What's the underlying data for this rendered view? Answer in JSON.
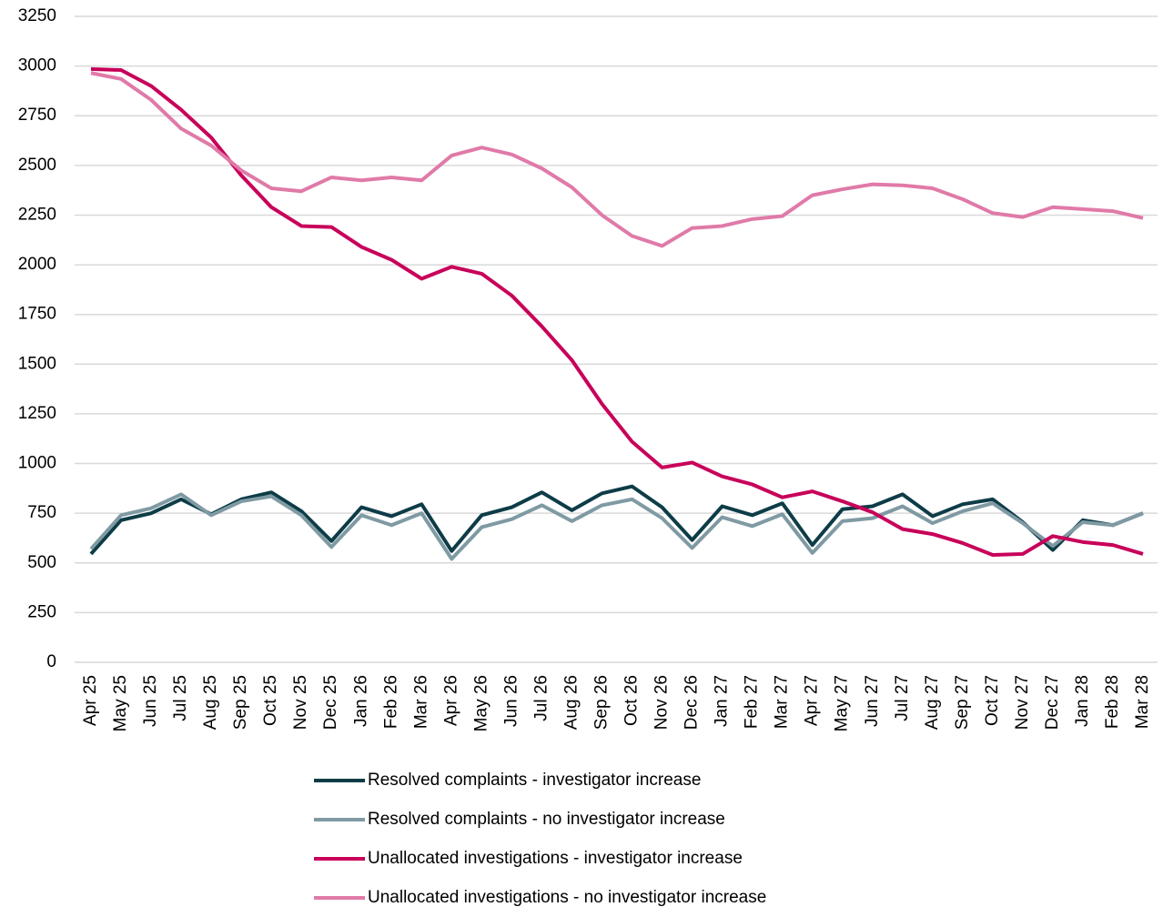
{
  "chart_data": {
    "type": "line",
    "categories": [
      "Apr 25",
      "May 25",
      "Jun 25",
      "Jul 25",
      "Aug 25",
      "Sep 25",
      "Oct 25",
      "Nov 25",
      "Dec 25",
      "Jan 26",
      "Feb 26",
      "Mar 26",
      "Apr 26",
      "May 26",
      "Jun 26",
      "Jul 26",
      "Aug 26",
      "Sep 26",
      "Oct 26",
      "Nov 26",
      "Dec 26",
      "Jan 27",
      "Feb 27",
      "Mar 27",
      "Apr 27",
      "May 27",
      "Jun 27",
      "Jul 27",
      "Aug 27",
      "Sep 27",
      "Oct 27",
      "Nov 27",
      "Dec 27",
      "Jan 28",
      "Feb 28",
      "Mar 28"
    ],
    "series": [
      {
        "name": "Resolved complaints - investigator increase",
        "color": "#0d3c47",
        "values": [
          545,
          715,
          750,
          820,
          745,
          820,
          855,
          760,
          610,
          780,
          735,
          795,
          560,
          740,
          780,
          855,
          765,
          850,
          885,
          780,
          615,
          785,
          740,
          800,
          590,
          770,
          785,
          845,
          735,
          795,
          820,
          705,
          565,
          715,
          690,
          750
        ]
      },
      {
        "name": "Resolved complaints - no investigator increase",
        "color": "#7f9aa3",
        "values": [
          570,
          740,
          775,
          845,
          740,
          810,
          835,
          740,
          580,
          740,
          690,
          750,
          520,
          680,
          720,
          790,
          710,
          790,
          820,
          725,
          575,
          730,
          685,
          745,
          550,
          710,
          725,
          785,
          700,
          760,
          800,
          700,
          585,
          705,
          690,
          750
        ]
      },
      {
        "name": "Unallocated investigations - investigator increase",
        "color": "#c8005a",
        "values": [
          2985,
          2980,
          2900,
          2780,
          2640,
          2450,
          2290,
          2195,
          2190,
          2090,
          2025,
          1930,
          1990,
          1955,
          1845,
          1690,
          1520,
          1300,
          1110,
          980,
          1005,
          935,
          895,
          830,
          860,
          810,
          755,
          670,
          645,
          600,
          540,
          545,
          635,
          605,
          590,
          545
        ]
      },
      {
        "name": "Unallocated investigations - no investigator increase",
        "color": "#e07aa8",
        "values": [
          2965,
          2935,
          2830,
          2685,
          2600,
          2475,
          2385,
          2370,
          2440,
          2425,
          2440,
          2425,
          2550,
          2590,
          2555,
          2485,
          2390,
          2250,
          2145,
          2095,
          2185,
          2195,
          2230,
          2245,
          2350,
          2380,
          2405,
          2400,
          2385,
          2330,
          2260,
          2240,
          2290,
          2280,
          2270,
          2235
        ]
      }
    ],
    "ylim": [
      0,
      3250
    ],
    "yticks": [
      0,
      250,
      500,
      750,
      1000,
      1250,
      1500,
      1750,
      2000,
      2250,
      2500,
      2750,
      3000,
      3250
    ],
    "grid": true
  }
}
